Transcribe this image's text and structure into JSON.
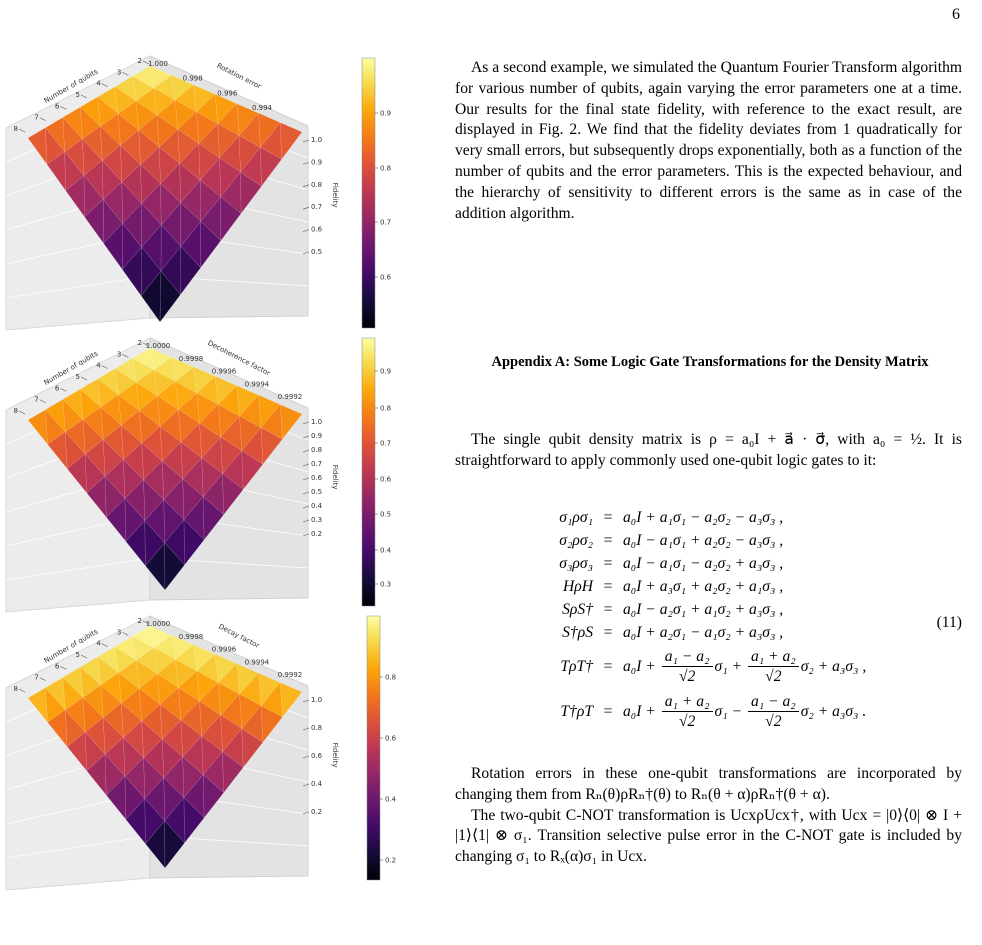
{
  "page_number": "6",
  "figure": {
    "panels": [
      {
        "x_label": "Number of qubits",
        "x_ticks": [
          "2",
          "3",
          "4",
          "5",
          "6",
          "7",
          "8"
        ],
        "y_label": "Rotation error",
        "y_ticks": [
          "1.000",
          "0.998",
          "0.996",
          "0.994"
        ],
        "z_label": "Fidelity",
        "z_ticks": [
          "1.0",
          "0.9",
          "0.8",
          "0.7",
          "0.6",
          "0.5"
        ],
        "colorbar_ticks": [
          "0.9",
          "0.8",
          "0.7",
          "0.6"
        ]
      },
      {
        "x_label": "Number of qubits",
        "x_ticks": [
          "2",
          "3",
          "4",
          "5",
          "6",
          "7",
          "8"
        ],
        "y_label": "Decoherence factor",
        "y_ticks": [
          "1.0000",
          "0.9998",
          "0.9996",
          "0.9994",
          "0.9992"
        ],
        "z_label": "Fidelity",
        "z_ticks": [
          "1.0",
          "0.9",
          "0.8",
          "0.7",
          "0.6",
          "0.5",
          "0.4",
          "0.3",
          "0.2"
        ],
        "colorbar_ticks": [
          "0.9",
          "0.8",
          "0.7",
          "0.6",
          "0.5",
          "0.4",
          "0.3"
        ]
      },
      {
        "x_label": "Number of qubits",
        "x_ticks": [
          "2",
          "3",
          "4",
          "5",
          "6",
          "7",
          "8"
        ],
        "y_label": "Decay factor",
        "y_ticks": [
          "1.0000",
          "0.9998",
          "0.9996",
          "0.9994",
          "0.9992"
        ],
        "z_label": "Fidelity",
        "z_ticks": [
          "1.0",
          "0.8",
          "0.6",
          "0.4",
          "0.2"
        ],
        "colorbar_ticks": [
          "0.8",
          "0.6",
          "0.4",
          "0.2"
        ]
      }
    ]
  },
  "paragraphs": [
    "As a second example, we simulated the Quantum Fourier Transform algorithm for various number of qubits, again varying the error parameters one at a time. Our results for the final state fidelity, with reference to the exact result, are displayed in Fig. 2. We find that the fidelity deviates from 1 quadratically for very small errors, but subsequently drops exponentially, both as a function of the number of qubits and the error parameters. This is the expected behaviour, and the hierarchy of sensitivity to different errors is the same as in case of the addition algorithm."
  ],
  "appendix": {
    "heading": "Appendix A: Some Logic Gate Transformations for the Density Matrix",
    "intro": "The single qubit density matrix is ρ = a₀I + a⃗ · σ⃗, with a₀ = ½. It is straightforward to apply commonly used one-qubit logic gates to it:",
    "equation_number": "(11)",
    "equations": [
      {
        "lhs": "σ₁ρσ₁",
        "rhs": [
          "a₀I + a₁σ₁ − a₂σ₂ − a₃σ₃ ,"
        ]
      },
      {
        "lhs": "σ₂ρσ₂",
        "rhs": [
          "a₀I − a₁σ₁ + a₂σ₂ − a₃σ₃ ,"
        ]
      },
      {
        "lhs": "σ₃ρσ₃",
        "rhs": [
          "a₀I − a₁σ₁ − a₂σ₂ + a₃σ₃ ,"
        ]
      },
      {
        "lhs": "HρH",
        "rhs": [
          "a₀I + a₃σ₁ + a₂σ₂ + a₁σ₃ ,"
        ]
      },
      {
        "lhs": "SρS†",
        "rhs": [
          "a₀I − a₂σ₁ + a₁σ₂ + a₃σ₃ ,"
        ]
      },
      {
        "lhs": "S†ρS",
        "rhs": [
          "a₀I + a₂σ₁ − a₁σ₂ + a₃σ₃ ,"
        ]
      },
      {
        "lhs": "TρT†",
        "rhs": [
          "a₀I + ",
          {
            "num": "a₁ − a₂",
            "den": "√2"
          },
          "σ₁ + ",
          {
            "num": "a₁ + a₂",
            "den": "√2"
          },
          "σ₂ + a₃σ₃ ,"
        ]
      },
      {
        "lhs": "T†ρT",
        "rhs": [
          "a₀I + ",
          {
            "num": "a₁ + a₂",
            "den": "√2"
          },
          "σ₁ − ",
          {
            "num": "a₁ − a₂",
            "den": "√2"
          },
          "σ₂ + a₃σ₃ ."
        ]
      }
    ],
    "after": [
      "Rotation errors in these one-qubit transformations are incorporated by changing them from Rₙ(θ)ρRₙ†(θ) to Rₙ(θ + α)ρRₙ†(θ + α).",
      "The two-qubit C-NOT transformation is UcxρUcx†, with Ucx = |0⟩⟨0| ⊗ I + |1⟩⟨1| ⊗ σ₁. Transition selective pulse error in the C-NOT gate is included by changing σ₁ to Rₓ(α)σ₁ in Ucx."
    ]
  }
}
